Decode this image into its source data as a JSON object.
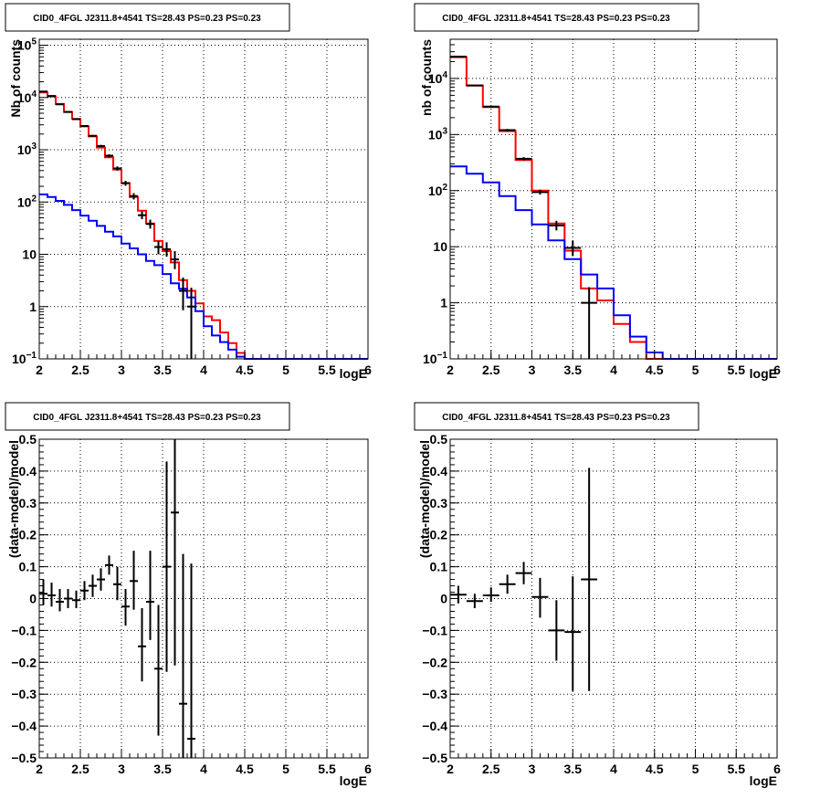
{
  "figure": {
    "background": "#ffffff",
    "model_color": "#ff0000",
    "component_color": "#0000ff",
    "data_color": "#000000"
  },
  "chart_data": [
    {
      "id": "tl",
      "type": "line",
      "title": "CID0_4FGL J2311.8+4541 TS=28.43 PS=0.23 PS=0.23",
      "xlabel": "logE",
      "ylabel": "Nb of counts",
      "xlim": [
        2,
        6
      ],
      "ylim": [
        0.1,
        130000
      ],
      "log_y": true,
      "grid": true,
      "xticks": [
        2,
        2.5,
        3,
        3.5,
        4,
        4.5,
        5,
        5.5,
        6
      ],
      "xtick_labels": [
        "2",
        "2.5",
        "3",
        "3.5",
        "4",
        "4.5",
        "5",
        "5.5",
        "6"
      ],
      "yticks": [
        {
          "v": 0.1,
          "b": "10",
          "e": "−1"
        },
        {
          "v": 1,
          "b": "1",
          "e": ""
        },
        {
          "v": 10,
          "b": "10",
          "e": ""
        },
        {
          "v": 100,
          "b": "10",
          "e": "2"
        },
        {
          "v": 1000,
          "b": "10",
          "e": "3"
        },
        {
          "v": 10000,
          "b": "10",
          "e": "4"
        },
        {
          "v": 100000,
          "b": "10",
          "e": "5"
        }
      ],
      "bin_edges": [
        2.0,
        2.1,
        2.2,
        2.3,
        2.4,
        2.5,
        2.6,
        2.7,
        2.8,
        2.9,
        3.0,
        3.1,
        3.2,
        3.3,
        3.4,
        3.5,
        3.6,
        3.7,
        3.8,
        3.9,
        4.0,
        4.1,
        4.2,
        4.3,
        4.4,
        4.5,
        4.6,
        4.7,
        4.8,
        4.9,
        5.0,
        5.1,
        5.2,
        5.3,
        5.4,
        5.5,
        5.6,
        5.7,
        5.8,
        5.9,
        6.0
      ],
      "series": [
        {
          "role": "model",
          "values": [
            12500,
            10500,
            7500,
            5300,
            3900,
            2800,
            1800,
            1100,
            720,
            420,
            230,
            125,
            68,
            39,
            18,
            11.5,
            7.0,
            3.2,
            2.0,
            1.15,
            0.65,
            0.55,
            0.32,
            0.2,
            0.13,
            0.1,
            0.1,
            0.1,
            0.1,
            0.1,
            0.1,
            0.1,
            0.1,
            0.1,
            0.1,
            0.1,
            0.1,
            0.1,
            0.1,
            0.1
          ]
        },
        {
          "role": "component",
          "values": [
            140,
            125,
            105,
            88,
            70,
            55,
            44,
            35,
            27,
            22,
            16,
            13,
            10,
            7.5,
            6.2,
            4.2,
            2.8,
            2.2,
            1.5,
            0.82,
            0.42,
            0.28,
            0.21,
            0.15,
            0.11,
            0.1,
            0.1,
            0.1,
            0.1,
            0.1,
            0.1,
            0.1,
            0.1,
            0.1,
            0.1,
            0.1,
            0.1,
            0.1,
            0.1,
            0.1
          ]
        }
      ],
      "points": [
        {
          "x": 2.05,
          "y": 13000,
          "ylo": 12800,
          "yhi": 13200
        },
        {
          "x": 2.15,
          "y": 10700,
          "ylo": 10500,
          "yhi": 10900
        },
        {
          "x": 2.25,
          "y": 7400,
          "ylo": 7250,
          "yhi": 7550
        },
        {
          "x": 2.35,
          "y": 5300,
          "ylo": 5150,
          "yhi": 5450
        },
        {
          "x": 2.45,
          "y": 3850,
          "ylo": 3750,
          "yhi": 3950
        },
        {
          "x": 2.55,
          "y": 2850,
          "ylo": 2750,
          "yhi": 2950
        },
        {
          "x": 2.65,
          "y": 1850,
          "ylo": 1780,
          "yhi": 1920
        },
        {
          "x": 2.75,
          "y": 1180,
          "ylo": 1120,
          "yhi": 1240
        },
        {
          "x": 2.85,
          "y": 770,
          "ylo": 720,
          "yhi": 820
        },
        {
          "x": 2.95,
          "y": 440,
          "ylo": 400,
          "yhi": 480
        },
        {
          "x": 3.05,
          "y": 230,
          "ylo": 205,
          "yhi": 255
        },
        {
          "x": 3.15,
          "y": 130,
          "ylo": 112,
          "yhi": 148
        },
        {
          "x": 3.25,
          "y": 56,
          "ylo": 47,
          "yhi": 66
        },
        {
          "x": 3.35,
          "y": 38,
          "ylo": 31,
          "yhi": 46
        },
        {
          "x": 3.45,
          "y": 13.8,
          "ylo": 10,
          "yhi": 18
        },
        {
          "x": 3.55,
          "y": 12.5,
          "ylo": 9,
          "yhi": 17
        },
        {
          "x": 3.65,
          "y": 8.0,
          "ylo": 5.2,
          "yhi": 11.5
        },
        {
          "x": 3.75,
          "y": 2.0,
          "ylo": 0.85,
          "yhi": 3.6
        },
        {
          "x": 3.85,
          "y": 1.0,
          "ylo": 0.1,
          "yhi": 2.3
        }
      ]
    },
    {
      "id": "tr",
      "type": "line",
      "title": "CID0_4FGL J2311.8+4541 TS=28.43 PS=0.23 PS=0.23",
      "xlabel": "logE",
      "ylabel": "nb of counts",
      "xlim": [
        2,
        6
      ],
      "ylim": [
        0.1,
        50000
      ],
      "log_y": true,
      "grid": true,
      "xticks": [
        2,
        2.5,
        3,
        3.5,
        4,
        4.5,
        5,
        5.5,
        6
      ],
      "xtick_labels": [
        "2",
        "2.5",
        "3",
        "3.5",
        "4",
        "4.5",
        "5",
        "5.5",
        "6"
      ],
      "yticks": [
        {
          "v": 0.1,
          "b": "10",
          "e": "−1"
        },
        {
          "v": 1,
          "b": "1",
          "e": ""
        },
        {
          "v": 10,
          "b": "10",
          "e": ""
        },
        {
          "v": 100,
          "b": "10",
          "e": "2"
        },
        {
          "v": 1000,
          "b": "10",
          "e": "3"
        },
        {
          "v": 10000,
          "b": "10",
          "e": "4"
        }
      ],
      "bin_edges": [
        2.0,
        2.2,
        2.4,
        2.6,
        2.8,
        3.0,
        3.2,
        3.4,
        3.6,
        3.8,
        4.0,
        4.2,
        4.4,
        4.6,
        4.8,
        5.0,
        5.2,
        5.4,
        5.6,
        5.8,
        6.0
      ],
      "series": [
        {
          "role": "model",
          "values": [
            24000,
            7500,
            3100,
            1150,
            350,
            100,
            26,
            8.5,
            1.8,
            1.1,
            0.42,
            0.2,
            0.1,
            0.1,
            0.1,
            0.1,
            0.1,
            0.1,
            0.1,
            0.1
          ]
        },
        {
          "role": "component",
          "values": [
            270,
            200,
            140,
            80,
            45,
            25,
            13,
            6.0,
            3.2,
            1.8,
            0.6,
            0.25,
            0.13,
            0.1,
            0.1,
            0.1,
            0.1,
            0.1,
            0.1,
            0.1
          ]
        }
      ],
      "points": [
        {
          "x": 2.1,
          "y": 24500,
          "ylo": 24200,
          "yhi": 24800
        },
        {
          "x": 2.3,
          "y": 7500,
          "ylo": 7350,
          "yhi": 7650
        },
        {
          "x": 2.5,
          "y": 3150,
          "ylo": 3050,
          "yhi": 3250
        },
        {
          "x": 2.7,
          "y": 1200,
          "ylo": 1140,
          "yhi": 1260
        },
        {
          "x": 2.9,
          "y": 370,
          "ylo": 345,
          "yhi": 395
        },
        {
          "x": 3.1,
          "y": 94,
          "ylo": 85,
          "yhi": 104
        },
        {
          "x": 3.3,
          "y": 24,
          "ylo": 19.5,
          "yhi": 29
        },
        {
          "x": 3.5,
          "y": 9.5,
          "ylo": 6.8,
          "yhi": 12.8
        },
        {
          "x": 3.7,
          "y": 1.0,
          "ylo": 0.1,
          "yhi": 1.9
        }
      ]
    },
    {
      "id": "bl",
      "type": "scatter",
      "title": "CID0_4FGL J2311.8+4541 TS=28.43 PS=0.23 PS=0.23",
      "xlabel": "logE",
      "ylabel": "(data-model)/model",
      "xlim": [
        2,
        6
      ],
      "ylim": [
        -0.5,
        0.5
      ],
      "log_y": false,
      "grid": true,
      "xticks": [
        2,
        2.5,
        3,
        3.5,
        4,
        4.5,
        5,
        5.5,
        6
      ],
      "xtick_labels": [
        "2",
        "2.5",
        "3",
        "3.5",
        "4",
        "4.5",
        "5",
        "5.5",
        "6"
      ],
      "yticks": [
        {
          "v": -0.5,
          "b": "−0.5",
          "e": ""
        },
        {
          "v": -0.4,
          "b": "−0.4",
          "e": ""
        },
        {
          "v": -0.3,
          "b": "−0.3",
          "e": ""
        },
        {
          "v": -0.2,
          "b": "−0.2",
          "e": ""
        },
        {
          "v": -0.1,
          "b": "−0.1",
          "e": ""
        },
        {
          "v": 0,
          "b": "0",
          "e": ""
        },
        {
          "v": 0.1,
          "b": "0.1",
          "e": ""
        },
        {
          "v": 0.2,
          "b": "0.2",
          "e": ""
        },
        {
          "v": 0.3,
          "b": "0.3",
          "e": ""
        },
        {
          "v": 0.4,
          "b": "0.4",
          "e": ""
        },
        {
          "v": 0.5,
          "b": "0.5",
          "e": ""
        }
      ],
      "series": [],
      "xerr": 0.05,
      "points": [
        {
          "x": 2.05,
          "y": 0.015,
          "ylo": -0.02,
          "yhi": 0.06
        },
        {
          "x": 2.15,
          "y": 0.01,
          "ylo": -0.025,
          "yhi": 0.05
        },
        {
          "x": 2.25,
          "y": -0.01,
          "ylo": -0.04,
          "yhi": 0.03
        },
        {
          "x": 2.35,
          "y": 0.0,
          "ylo": -0.03,
          "yhi": 0.03
        },
        {
          "x": 2.45,
          "y": -0.005,
          "ylo": -0.03,
          "yhi": 0.025
        },
        {
          "x": 2.55,
          "y": 0.025,
          "ylo": -0.005,
          "yhi": 0.055
        },
        {
          "x": 2.65,
          "y": 0.04,
          "ylo": 0.005,
          "yhi": 0.075
        },
        {
          "x": 2.75,
          "y": 0.06,
          "ylo": 0.025,
          "yhi": 0.095
        },
        {
          "x": 2.85,
          "y": 0.105,
          "ylo": 0.075,
          "yhi": 0.135
        },
        {
          "x": 2.95,
          "y": 0.045,
          "ylo": -0.005,
          "yhi": 0.1
        },
        {
          "x": 3.05,
          "y": -0.025,
          "ylo": -0.085,
          "yhi": 0.03
        },
        {
          "x": 3.15,
          "y": 0.055,
          "ylo": -0.035,
          "yhi": 0.15
        },
        {
          "x": 3.25,
          "y": -0.15,
          "ylo": -0.26,
          "yhi": -0.03
        },
        {
          "x": 3.35,
          "y": -0.01,
          "ylo": -0.13,
          "yhi": 0.15
        },
        {
          "x": 3.45,
          "y": -0.22,
          "ylo": -0.43,
          "yhi": -0.02
        },
        {
          "x": 3.55,
          "y": 0.1,
          "ylo": -0.23,
          "yhi": 0.43
        },
        {
          "x": 3.65,
          "y": 0.27,
          "ylo": -0.21,
          "yhi": 0.5
        },
        {
          "x": 3.75,
          "y": -0.33,
          "ylo": -0.5,
          "yhi": 0.14
        },
        {
          "x": 3.85,
          "y": -0.44,
          "ylo": -0.5,
          "yhi": 0.11
        }
      ]
    },
    {
      "id": "br",
      "type": "scatter",
      "title": "CID0_4FGL J2311.8+4541 TS=28.43 PS=0.23 PS=0.23",
      "xlabel": "logE",
      "ylabel": "(data-model)/model",
      "xlim": [
        2,
        6
      ],
      "ylim": [
        -0.5,
        0.5
      ],
      "log_y": false,
      "grid": true,
      "xticks": [
        2,
        2.5,
        3,
        3.5,
        4,
        4.5,
        5,
        5.5,
        6
      ],
      "xtick_labels": [
        "2",
        "2.5",
        "3",
        "3.5",
        "4",
        "4.5",
        "5",
        "5.5",
        "6"
      ],
      "yticks": [
        {
          "v": -0.5,
          "b": "−0.5",
          "e": ""
        },
        {
          "v": -0.4,
          "b": "−0.4",
          "e": ""
        },
        {
          "v": -0.3,
          "b": "−0.3",
          "e": ""
        },
        {
          "v": -0.2,
          "b": "−0.2",
          "e": ""
        },
        {
          "v": -0.1,
          "b": "−0.1",
          "e": ""
        },
        {
          "v": 0,
          "b": "0",
          "e": ""
        },
        {
          "v": 0.1,
          "b": "0.1",
          "e": ""
        },
        {
          "v": 0.2,
          "b": "0.2",
          "e": ""
        },
        {
          "v": 0.3,
          "b": "0.3",
          "e": ""
        },
        {
          "v": 0.4,
          "b": "0.4",
          "e": ""
        },
        {
          "v": 0.5,
          "b": "0.5",
          "e": ""
        }
      ],
      "series": [],
      "xerr": 0.1,
      "points": [
        {
          "x": 2.1,
          "y": 0.012,
          "ylo": -0.015,
          "yhi": 0.04
        },
        {
          "x": 2.3,
          "y": -0.008,
          "ylo": -0.03,
          "yhi": 0.015
        },
        {
          "x": 2.5,
          "y": 0.01,
          "ylo": -0.01,
          "yhi": 0.035
        },
        {
          "x": 2.7,
          "y": 0.045,
          "ylo": 0.015,
          "yhi": 0.075
        },
        {
          "x": 2.9,
          "y": 0.08,
          "ylo": 0.045,
          "yhi": 0.115
        },
        {
          "x": 3.1,
          "y": 0.005,
          "ylo": -0.06,
          "yhi": 0.065
        },
        {
          "x": 3.3,
          "y": -0.1,
          "ylo": -0.195,
          "yhi": -0.005
        },
        {
          "x": 3.5,
          "y": -0.105,
          "ylo": -0.29,
          "yhi": 0.07
        },
        {
          "x": 3.7,
          "y": 0.06,
          "ylo": -0.29,
          "yhi": 0.41
        }
      ]
    }
  ]
}
